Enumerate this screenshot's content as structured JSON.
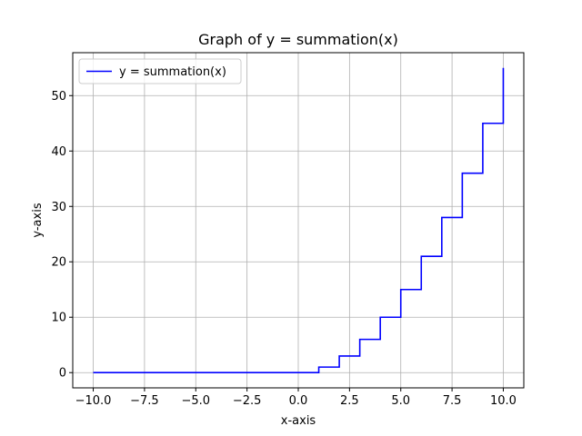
{
  "chart_data": {
    "type": "line",
    "title": "Graph of y = summation(x)",
    "xlabel": "x-axis",
    "ylabel": "y-axis",
    "xlim": [
      -11,
      11
    ],
    "ylim": [
      -2.75,
      57.75
    ],
    "xticks": [
      -10.0,
      -7.5,
      -5.0,
      -2.5,
      0.0,
      2.5,
      5.0,
      7.5,
      10.0
    ],
    "xtick_labels": [
      "−10.0",
      "−7.5",
      "−5.0",
      "−2.5",
      "0.0",
      "2.5",
      "5.0",
      "7.5",
      "10.0"
    ],
    "yticks": [
      0,
      10,
      20,
      30,
      40,
      50
    ],
    "ytick_labels": [
      "0",
      "10",
      "20",
      "30",
      "40",
      "50"
    ],
    "grid": true,
    "legend_position": "top-left",
    "series": [
      {
        "name": "y = summation(x)",
        "color": "#0000ff",
        "style": "step",
        "x": [
          -10,
          1,
          1,
          2,
          2,
          3,
          3,
          4,
          4,
          5,
          5,
          6,
          6,
          7,
          7,
          8,
          8,
          9,
          9,
          10,
          10
        ],
        "y": [
          0,
          0,
          1,
          1,
          3,
          3,
          6,
          6,
          10,
          10,
          15,
          15,
          21,
          21,
          28,
          28,
          36,
          36,
          45,
          45,
          55
        ]
      }
    ]
  }
}
